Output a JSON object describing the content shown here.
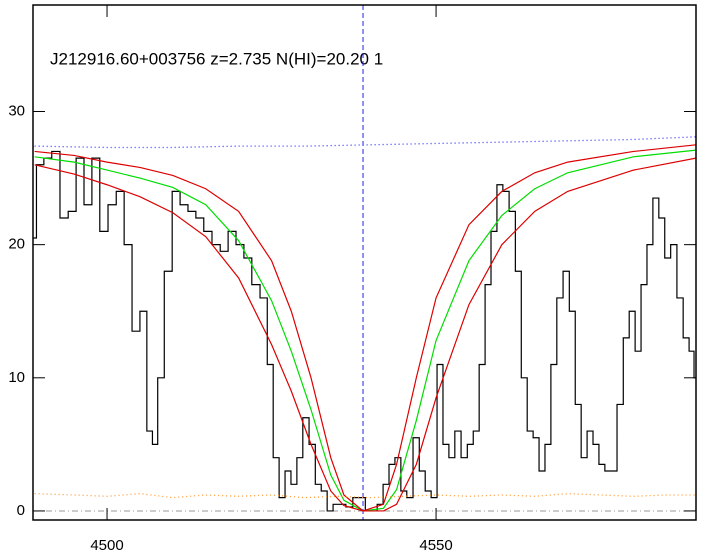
{
  "chart_data": {
    "type": "line",
    "title": "J212916.60+003756 z=2.735 N(HI)=20.20 1",
    "xlim": [
      4488.75,
      4589.5
    ],
    "ylim": [
      -0.68,
      38
    ],
    "xticks": [
      4500,
      4550
    ],
    "yticks": [
      0,
      10,
      20,
      30
    ],
    "vline": 4538.9,
    "hline": 0,
    "series": [
      {
        "name": "flux",
        "style": "step",
        "color": "#000000",
        "x": [
          4488.75,
          4489.8,
          4491.0,
          4492.2,
          4493.5,
          4494.7,
          4495.9,
          4497.1,
          4498.3,
          4499.5,
          4500.8,
          4502.0,
          4503.2,
          4504.4,
          4505.6,
          4506.5,
          4507.3,
          4508.1,
          4509.3,
          4510.5,
          4511.7,
          4512.9,
          4514.1,
          4515.3,
          4516.6,
          4517.8,
          4519.0,
          4520.2,
          4521.4,
          4522.6,
          4523.9,
          4524.8,
          4525.7,
          4526.6,
          4527.5,
          4528.4,
          4529.3,
          4530.2,
          4531.2,
          4532.1,
          4533.0,
          4533.9,
          4534.8,
          4535.7,
          4536.9,
          4537.8,
          4538.8,
          4539.7,
          4540.6,
          4541.5,
          4542.4,
          4543.3,
          4544.2,
          4545.1,
          4546.0,
          4547.0,
          4547.9,
          4548.8,
          4549.7,
          4550.6,
          4551.5,
          4552.4,
          4553.3,
          4554.3,
          4555.2,
          4556.1,
          4557.0,
          4557.9,
          4558.8,
          4559.7,
          4560.6,
          4561.6,
          4562.5,
          4563.4,
          4564.3,
          4565.2,
          4566.1,
          4567.0,
          4567.9,
          4568.8,
          4569.8,
          4570.7,
          4571.6,
          4572.5,
          4573.4,
          4574.3,
          4575.2,
          4576.1,
          4577.0,
          4578.0,
          4578.9,
          4579.8,
          4580.7,
          4581.6,
          4582.5,
          4583.4,
          4584.3,
          4585.2,
          4586.1,
          4587.1,
          4588.0,
          4588.9,
          4589.5
        ],
        "values": [
          20.5,
          26,
          26.5,
          27,
          22,
          22.5,
          26.5,
          23,
          26.5,
          21,
          23,
          24,
          20,
          13.5,
          15,
          6,
          5,
          10,
          18,
          24,
          23,
          22.5,
          22,
          21,
          20,
          19.5,
          21,
          20,
          19,
          17,
          16,
          11,
          4,
          1,
          3,
          2,
          4,
          7,
          5,
          2,
          1.5,
          0,
          0.5,
          0.5,
          0.3,
          1,
          1,
          0,
          0,
          0.5,
          2,
          3.5,
          4,
          1.5,
          1,
          5.5,
          3,
          1.5,
          1,
          11,
          5,
          4,
          6,
          4,
          5,
          6,
          11,
          17,
          21,
          24.5,
          24,
          22.5,
          18,
          10,
          6,
          5.5,
          3,
          5,
          11,
          16,
          18,
          15,
          8,
          4,
          6,
          5,
          3.5,
          3,
          3,
          8,
          13,
          15,
          12,
          17,
          20,
          23.5,
          22,
          19,
          20,
          16,
          13,
          12,
          10
        ]
      },
      {
        "name": "fit",
        "style": "solid",
        "color": "#00dd00",
        "x": [
          4489,
          4495,
          4500,
          4505,
          4510,
          4515,
          4520,
          4525,
          4528,
          4531,
          4534,
          4536,
          4538.9,
          4542,
          4544,
          4547,
          4550,
          4555,
          4560,
          4565,
          4570,
          4580,
          4589.5
        ],
        "values": [
          26.6,
          26.2,
          25.6,
          25.0,
          24.3,
          23,
          20.3,
          15.8,
          12,
          7.6,
          2.7,
          0.8,
          0,
          0.2,
          1.6,
          6.8,
          12.8,
          18.8,
          22.2,
          24.2,
          25.4,
          26.6,
          27.1
        ]
      },
      {
        "name": "fit upper",
        "style": "solid",
        "color": "#dd0000",
        "x": [
          4489,
          4495,
          4500,
          4505,
          4510,
          4515,
          4520,
          4525,
          4528,
          4531,
          4534,
          4536,
          4538.9,
          4542,
          4544,
          4547,
          4550,
          4555,
          4560,
          4565,
          4570,
          4580,
          4589.5
        ],
        "values": [
          27.0,
          26.7,
          26.2,
          25.8,
          25.2,
          24.2,
          22.5,
          18.8,
          15,
          10,
          4,
          1.2,
          0,
          0.5,
          3.5,
          10,
          16,
          21.5,
          24,
          25.4,
          26.2,
          27,
          27.5
        ]
      },
      {
        "name": "fit lower",
        "style": "solid",
        "color": "#dd0000",
        "x": [
          4489,
          4495,
          4500,
          4505,
          4510,
          4515,
          4520,
          4525,
          4528,
          4531,
          4534,
          4536,
          4538.9,
          4542,
          4544,
          4547,
          4550,
          4555,
          4560,
          4565,
          4570,
          4580,
          4589.5
        ],
        "values": [
          26.0,
          25.3,
          24.5,
          23.6,
          22.4,
          20.6,
          17.5,
          12.5,
          9,
          5,
          1.5,
          0.4,
          0,
          0,
          0.5,
          3.5,
          8.5,
          15.5,
          20,
          22.5,
          24,
          25.6,
          26.5
        ]
      },
      {
        "name": "continuum",
        "style": "dotted",
        "color": "#3333ff",
        "x": [
          4489,
          4500,
          4510,
          4520,
          4530,
          4540,
          4550,
          4560,
          4570,
          4580,
          4589.5
        ],
        "values": [
          27.4,
          27.3,
          27.3,
          27.4,
          27.4,
          27.5,
          27.6,
          27.7,
          27.8,
          27.9,
          28.1
        ]
      },
      {
        "name": "error",
        "style": "dotted",
        "color": "#ff9933",
        "x": [
          4489,
          4495,
          4500,
          4505,
          4510,
          4515,
          4520,
          4525,
          4530,
          4535,
          4540,
          4545,
          4550,
          4555,
          4560,
          4565,
          4570,
          4575,
          4580,
          4585,
          4589.5
        ],
        "values": [
          1.3,
          1.2,
          1.1,
          1.3,
          1.0,
          1.2,
          1.1,
          1.2,
          1.0,
          1.1,
          1.0,
          1.1,
          1.2,
          1.1,
          1.2,
          1.1,
          1.3,
          1.2,
          1.1,
          1.2,
          1.2
        ]
      }
    ]
  }
}
